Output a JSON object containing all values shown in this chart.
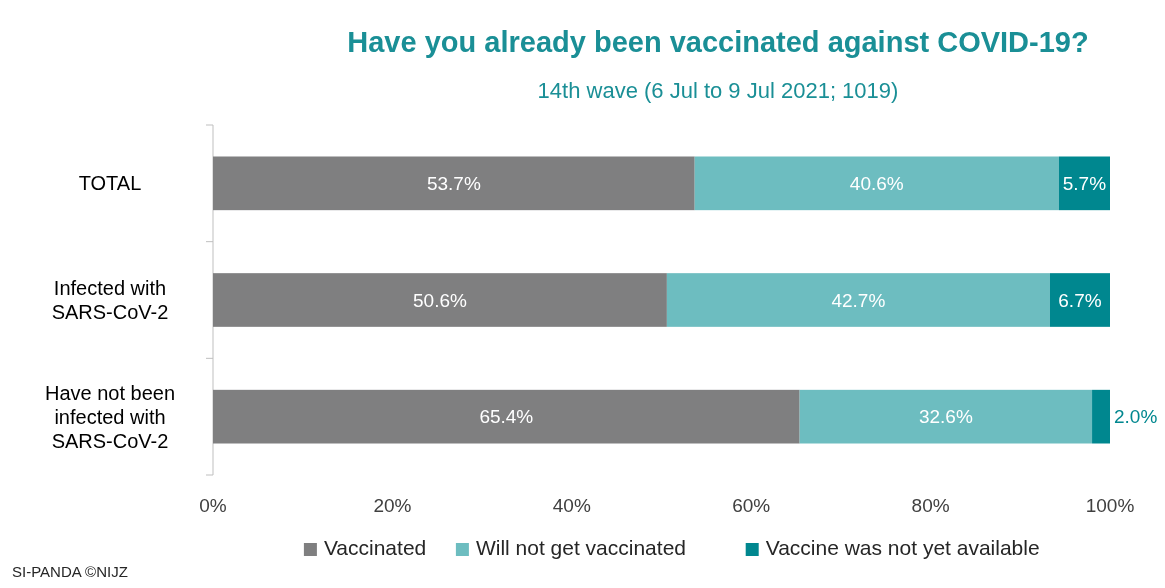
{
  "chart_data": {
    "type": "bar",
    "orientation": "horizontal",
    "stacked": true,
    "title": "Have you already been vaccinated against COVID-19?",
    "subtitle": "14th wave (6 Jul to 9 Jul 2021; 1019)",
    "categories": [
      "TOTAL",
      "Infected with SARS-CoV-2",
      "Have not been infected with SARS-CoV-2"
    ],
    "series": [
      {
        "name": "Vaccinated",
        "color": "#7f7f80",
        "values": [
          53.7,
          50.6,
          65.4
        ],
        "value_labels": [
          "53.7%",
          "50.6%",
          "65.4%"
        ]
      },
      {
        "name": "Will not get vaccinated",
        "color": "#6dbdc0",
        "values": [
          40.6,
          42.7,
          32.6
        ],
        "value_labels": [
          "40.6%",
          "42.7%",
          "32.6%"
        ]
      },
      {
        "name": "Vaccine was not yet available",
        "color": "#00878f",
        "values": [
          5.7,
          6.7,
          2.0
        ],
        "value_labels": [
          "5.7%",
          "6.7%",
          "2.0%"
        ]
      }
    ],
    "xlim": [
      0,
      100
    ],
    "xticks": [
      {
        "value": 0,
        "label": "0%"
      },
      {
        "value": 20,
        "label": "20%"
      },
      {
        "value": 40,
        "label": "40%"
      },
      {
        "value": 60,
        "label": "60%"
      },
      {
        "value": 80,
        "label": "80%"
      },
      {
        "value": 100,
        "label": "100%"
      }
    ],
    "grid": false,
    "legend": "bottom",
    "annotations": [
      "SI-PANDA ©NIJZ"
    ]
  }
}
